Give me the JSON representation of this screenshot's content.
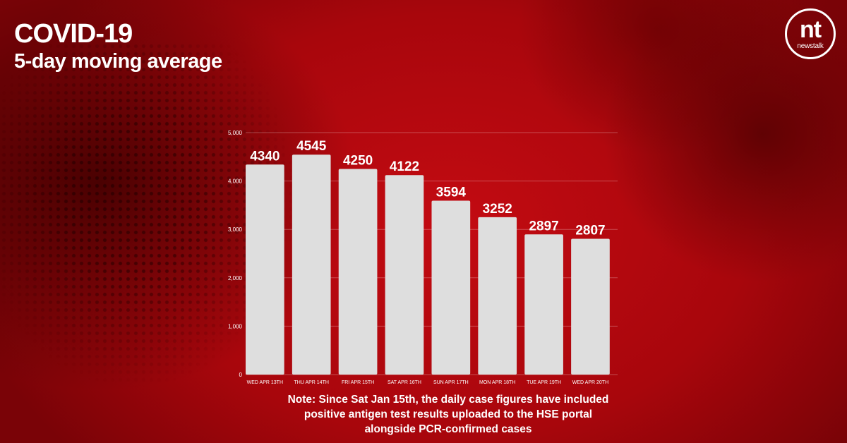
{
  "header": {
    "title": "COVID-19",
    "subtitle": "5-day moving average"
  },
  "logo": {
    "mark": "nt",
    "wordmark": "newstalk"
  },
  "note": {
    "line1": "Note: Since Sat Jan 15th, the daily case figures have included",
    "line2": "positive antigen test results uploaded to the HSE portal",
    "line3": "alongside PCR-confirmed cases"
  },
  "colors": {
    "background": "#b3070d",
    "bar": "#dedede",
    "text": "#ffffff"
  },
  "chart_data": {
    "type": "bar",
    "title": "",
    "xlabel": "",
    "ylabel": "",
    "categories": [
      "WED APR 13TH",
      "THU APR 14TH",
      "FRI APR 15TH",
      "SAT APR 16TH",
      "SUN APR 17TH",
      "MON APR 18TH",
      "TUE APR 19TH",
      "WED APR 20TH"
    ],
    "values": [
      4340,
      4545,
      4250,
      4122,
      3594,
      3252,
      2897,
      2807
    ],
    "data_labels": [
      "4340",
      "4545",
      "4250",
      "4122",
      "3594",
      "3252",
      "2897",
      "2807"
    ],
    "ylim": [
      0,
      5000
    ],
    "yticks": [
      0,
      1000,
      2000,
      3000,
      4000,
      5000
    ],
    "ytick_labels": [
      "0",
      "1,000",
      "2,000",
      "3,000",
      "4,000",
      "5,000"
    ],
    "grid": true,
    "legend": "none"
  }
}
